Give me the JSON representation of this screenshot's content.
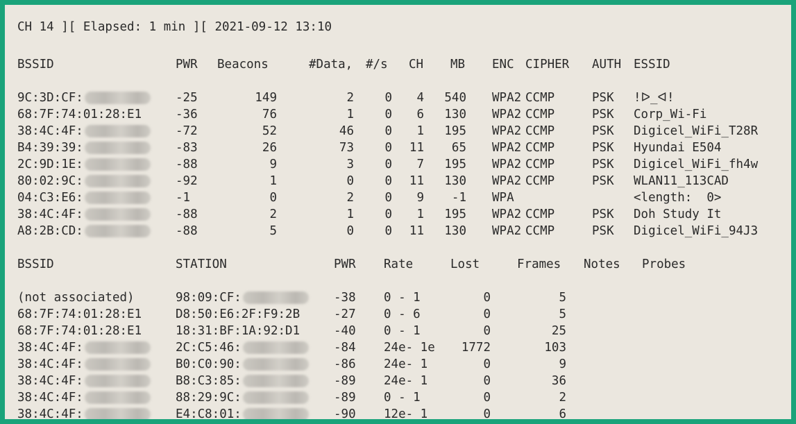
{
  "status_line": "CH 14 ][ Elapsed: 1 min ][ 2021-09-12 13:10",
  "ap_header": {
    "bssid": "BSSID",
    "pwr": "PWR",
    "beacons": "Beacons",
    "data": "#Data,",
    "per_s": "#/s",
    "ch": "CH",
    "mb": "MB",
    "enc": "ENC",
    "cipher": "CIPHER",
    "auth": "AUTH",
    "essid": "ESSID"
  },
  "ap_rows": [
    {
      "bssid": "9C:3D:CF:",
      "pwr": "-25",
      "beacons": "149",
      "data": "2",
      "per_s": "0",
      "ch": "4",
      "mb": "540",
      "enc": "WPA2",
      "cipher": "CCMP",
      "auth": "PSK",
      "essid": "!ᐅ_ᐊ!"
    },
    {
      "bssid": "68:7F:74:01:28:E1",
      "pwr": "-36",
      "beacons": "76",
      "data": "1",
      "per_s": "0",
      "ch": "6",
      "mb": "130",
      "enc": "WPA2",
      "cipher": "CCMP",
      "auth": "PSK",
      "essid": "Corp_Wi-Fi"
    },
    {
      "bssid": "38:4C:4F:",
      "pwr": "-72",
      "beacons": "52",
      "data": "46",
      "per_s": "0",
      "ch": "1",
      "mb": "195",
      "enc": "WPA2",
      "cipher": "CCMP",
      "auth": "PSK",
      "essid": "Digicel_WiFi_T28R"
    },
    {
      "bssid": "B4:39:39:",
      "pwr": "-83",
      "beacons": "26",
      "data": "73",
      "per_s": "0",
      "ch": "11",
      "mb": "65",
      "enc": "WPA2",
      "cipher": "CCMP",
      "auth": "PSK",
      "essid": "Hyundai E504"
    },
    {
      "bssid": "2C:9D:1E:",
      "pwr": "-88",
      "beacons": "9",
      "data": "3",
      "per_s": "0",
      "ch": "7",
      "mb": "195",
      "enc": "WPA2",
      "cipher": "CCMP",
      "auth": "PSK",
      "essid": "Digicel_WiFi_fh4w"
    },
    {
      "bssid": "80:02:9C:",
      "pwr": "-92",
      "beacons": "1",
      "data": "0",
      "per_s": "0",
      "ch": "11",
      "mb": "130",
      "enc": "WPA2",
      "cipher": "CCMP",
      "auth": "PSK",
      "essid": "WLAN11_113CAD"
    },
    {
      "bssid": "04:C3:E6:",
      "pwr": "-1",
      "beacons": "0",
      "data": "2",
      "per_s": "0",
      "ch": "9",
      "mb": "-1",
      "enc": "WPA",
      "cipher": "",
      "auth": "",
      "essid": "<length:  0>"
    },
    {
      "bssid": "38:4C:4F:",
      "pwr": "-88",
      "beacons": "2",
      "data": "1",
      "per_s": "0",
      "ch": "1",
      "mb": "195",
      "enc": "WPA2",
      "cipher": "CCMP",
      "auth": "PSK",
      "essid": "Doh Study It"
    },
    {
      "bssid": "A8:2B:CD:",
      "pwr": "-88",
      "beacons": "5",
      "data": "0",
      "per_s": "0",
      "ch": "11",
      "mb": "130",
      "enc": "WPA2",
      "cipher": "CCMP",
      "auth": "PSK",
      "essid": "Digicel_WiFi_94J3"
    }
  ],
  "station_header": {
    "bssid": "BSSID",
    "station": "STATION",
    "pwr": "PWR",
    "rate": "Rate",
    "lost": "Lost",
    "frames": "Frames",
    "notes": "Notes",
    "probes": "Probes"
  },
  "station_rows": [
    {
      "bssid": "(not associated)",
      "station": "98:09:CF:",
      "pwr": "-38",
      "rate": "0 - 1",
      "lost": "0",
      "frames": "5"
    },
    {
      "bssid": "68:7F:74:01:28:E1",
      "station": "D8:50:E6:2F:F9:2B",
      "pwr": "-27",
      "rate": "0 - 6",
      "lost": "0",
      "frames": "5"
    },
    {
      "bssid": "68:7F:74:01:28:E1",
      "station": "18:31:BF:1A:92:D1",
      "pwr": "-40",
      "rate": "0 - 1",
      "lost": "0",
      "frames": "25"
    },
    {
      "bssid": "38:4C:4F:",
      "station": "2C:C5:46:",
      "pwr": "-84",
      "rate": "24e- 1e",
      "lost": "1772",
      "frames": "103"
    },
    {
      "bssid": "38:4C:4F:",
      "station": "B0:C0:90:",
      "pwr": "-86",
      "rate": "24e- 1",
      "lost": "0",
      "frames": "9"
    },
    {
      "bssid": "38:4C:4F:",
      "station": "B8:C3:85:",
      "pwr": "-89",
      "rate": "24e- 1",
      "lost": "0",
      "frames": "36"
    },
    {
      "bssid": "38:4C:4F:",
      "station": "88:29:9C:",
      "pwr": "-89",
      "rate": "0 - 1",
      "lost": "0",
      "frames": "2"
    },
    {
      "bssid": "38:4C:4F:",
      "station": "E4:C8:01:",
      "pwr": "-90",
      "rate": "12e- 1",
      "lost": "0",
      "frames": "6"
    }
  ],
  "colors": {
    "frame": "#1aa37a",
    "background": "#ebe7df",
    "text": "#2a2a2a"
  }
}
